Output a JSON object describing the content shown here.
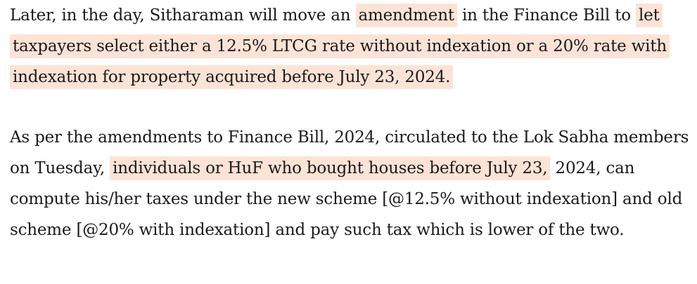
{
  "paragraph_1": {
    "before_highlight_1": "Later, in the day, Sitharaman will move an",
    "highlight_1": "amendment",
    "middle_text": "in the Finance Bill to",
    "highlight_2": "let taxpayers select either a 12.5% LTCG rate without indexation or a 20% rate with indexation for property acquired before July 23, 2024."
  },
  "paragraph_2": {
    "before_highlight": "As per the amendments to Finance Bill, 2024, circulated to the Lok Sabha members on Tuesday,",
    "highlight": "individuals or HuF who bought houses before July 23,",
    "after_highlight": "2024, can compute his/her taxes under the new scheme [@12.5% without indexation] and old scheme [@20% with indexation] and pay such tax which is lower of the two."
  },
  "colors": {
    "highlight": "#fde3d6",
    "text": "#1a1a1a",
    "background": "#ffffff"
  }
}
